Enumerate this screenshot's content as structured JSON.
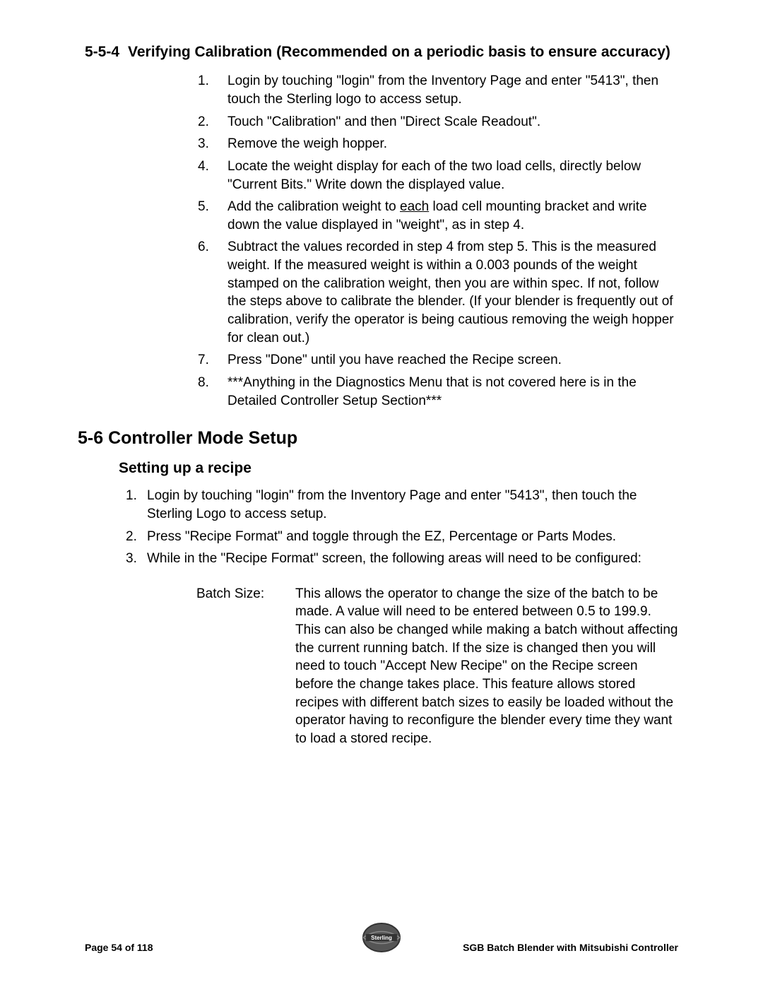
{
  "heading_554_num": "5-5-4",
  "heading_554_text": "Verifying Calibration (Recommended on a periodic basis to ensure accuracy)",
  "list_554": [
    {
      "n": "1.",
      "t": "Login by touching \"login\" from the Inventory Page and enter \"5413\", then touch the Sterling logo to access setup."
    },
    {
      "n": "2.",
      "t": "Touch \"Calibration\" and then \"Direct Scale Readout\"."
    },
    {
      "n": "3.",
      "t": "Remove the weigh hopper."
    },
    {
      "n": "4.",
      "t": "Locate the weight display for each of the two load cells, directly below \"Current Bits.\"  Write down the displayed value."
    },
    {
      "n": "5.",
      "pre": "Add the calibration weight to ",
      "u": "each",
      "post": " load cell mounting bracket and write down the value displayed in \"weight\", as in step 4."
    },
    {
      "n": "6.",
      "t": "Subtract the values recorded in step 4 from step 5.  This is the measured weight.  If the measured weight is within a 0.003 pounds of the weight stamped on the calibration weight, then you are within spec.  If not, follow the steps above to calibrate the blender.  (If your blender is frequently out of calibration, verify the operator is being cautious removing the weigh hopper for clean out.)"
    },
    {
      "n": "7.",
      "t": "Press \"Done\" until you have reached the Recipe screen."
    },
    {
      "n": "8.",
      "t": "***Anything in the Diagnostics Menu that is not covered here is in the Detailed Controller Setup Section***"
    }
  ],
  "heading_56": "5-6 Controller Mode Setup",
  "sub_heading": "Setting up a recipe",
  "list_56": [
    {
      "n": "1.",
      "t": "Login by touching \"login\" from the Inventory Page and enter \"5413\", then touch the Sterling Logo to access setup."
    },
    {
      "n": "2.",
      "t": "Press \"Recipe Format\" and toggle through the EZ, Percentage or Parts Modes."
    },
    {
      "n": "3.",
      "t": "While in the \"Recipe Format\" screen, the following areas will need to be configured:"
    }
  ],
  "def_label": "Batch Size:",
  "def_text": "This allows the operator to change the size of the batch to be made. A value will need to be entered between 0.5 to 199.9.  This can also be changed while making a batch without affecting the current running batch.  If the size is changed then you will need to touch \"Accept New Recipe\" on the Recipe screen before the change takes place.  This feature allows stored recipes with different batch sizes to easily be loaded without the operator having to reconfigure the blender every time they want to load a stored recipe.",
  "footer_left": "Page 54 of 118",
  "footer_right": "SGB Batch Blender with Mitsubishi Controller",
  "logo_text": "Sterling"
}
